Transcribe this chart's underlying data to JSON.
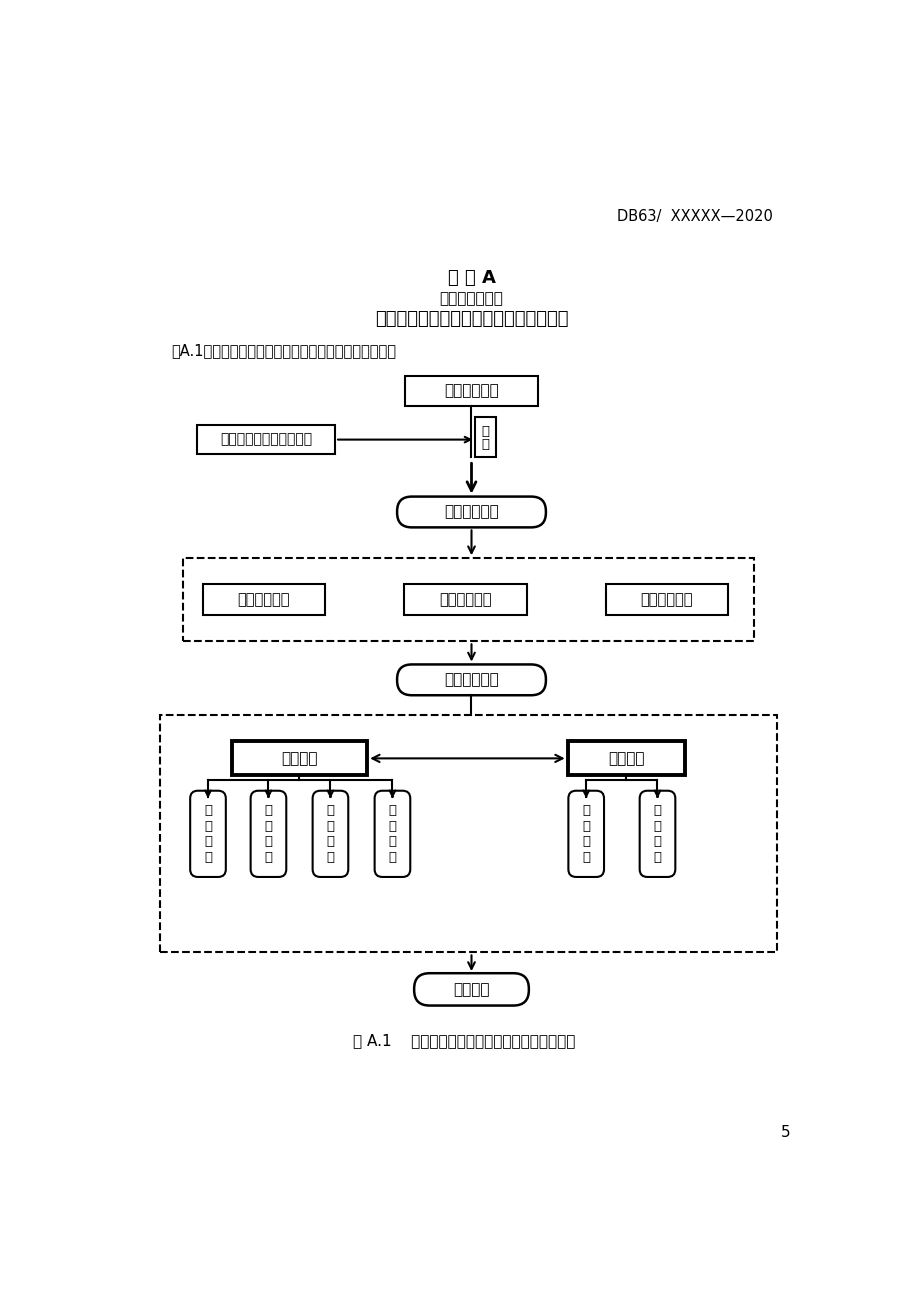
{
  "page_header": "DB63/  XXXXX—2020",
  "title_line1": "附 录 A",
  "title_line2": "（资料性附录）",
  "title_line3": "退化高寒湿地人工增雨型修复技术流程图",
  "intro_text": "图A.1给出了退化高寒湿地人工增雨型修复技术流程图。",
  "caption": "图 A.1    退化高寒湿地人工增雨型修复技术流程图",
  "page_num": "5",
  "box1_text": "退化高寒湿地",
  "box2_text": "作业区域地形、气候特征",
  "box_repair_text_line1": "修",
  "box_repair_text_line2": "复",
  "box3_text": "确定作业方式",
  "dash_box1_label1": "布设观测设备",
  "dash_box1_label2": "确定作业时段",
  "dash_box1_label3": "确定作业部位",
  "box4_text": "开展作业准备",
  "dash_box2_left": "作业实施",
  "dash_box2_right": "作业监测",
  "sub_left": [
    "空域申请",
    "等待批复",
    "实施作业",
    "信息上报"
  ],
  "sub_right": [
    "临近研判",
    "跟踪观测"
  ],
  "box5_text": "效果评价",
  "bg_color": "#ffffff",
  "text_color": "#000000"
}
